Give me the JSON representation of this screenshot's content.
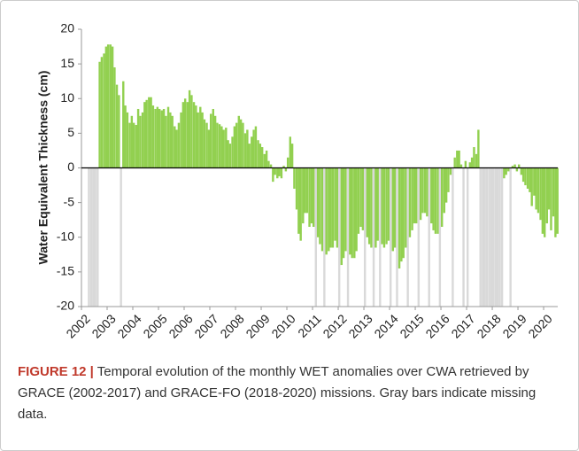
{
  "chart_data": {
    "type": "bar",
    "y_label": "Water Equivalent Thickness (cm)",
    "color": "#92d050",
    "missing_color": "#d9d9d9",
    "xlim": [
      2002,
      2020.55
    ],
    "xticks": [
      2002,
      2003,
      2004,
      2005,
      2006,
      2007,
      2008,
      2009,
      2010,
      2011,
      2012,
      2013,
      2014,
      2015,
      2016,
      2017,
      2018,
      2019,
      2020
    ],
    "ylim": [
      -20,
      20
    ],
    "yticks": [
      20,
      15,
      10,
      5,
      0,
      -5,
      -10,
      -15,
      -20
    ],
    "x": [
      2002.29,
      2002.38,
      2002.46,
      2002.54,
      2002.63,
      2002.71,
      2002.79,
      2002.88,
      2002.96,
      2003.04,
      2003.13,
      2003.21,
      2003.29,
      2003.38,
      2003.46,
      2003.54,
      2003.63,
      2003.71,
      2003.79,
      2003.88,
      2003.96,
      2004.04,
      2004.13,
      2004.21,
      2004.29,
      2004.38,
      2004.46,
      2004.54,
      2004.63,
      2004.71,
      2004.79,
      2004.88,
      2004.96,
      2005.04,
      2005.13,
      2005.21,
      2005.29,
      2005.38,
      2005.46,
      2005.54,
      2005.63,
      2005.71,
      2005.79,
      2005.88,
      2005.96,
      2006.04,
      2006.13,
      2006.21,
      2006.29,
      2006.38,
      2006.46,
      2006.54,
      2006.63,
      2006.71,
      2006.79,
      2006.88,
      2006.96,
      2007.04,
      2007.13,
      2007.21,
      2007.29,
      2007.38,
      2007.46,
      2007.54,
      2007.63,
      2007.71,
      2007.79,
      2007.88,
      2007.96,
      2008.04,
      2008.13,
      2008.21,
      2008.29,
      2008.38,
      2008.46,
      2008.54,
      2008.63,
      2008.71,
      2008.79,
      2008.88,
      2008.96,
      2009.04,
      2009.13,
      2009.21,
      2009.29,
      2009.38,
      2009.46,
      2009.54,
      2009.63,
      2009.71,
      2009.79,
      2009.88,
      2009.96,
      2010.04,
      2010.13,
      2010.21,
      2010.29,
      2010.38,
      2010.46,
      2010.54,
      2010.63,
      2010.71,
      2010.79,
      2010.88,
      2010.96,
      2011.04,
      2011.13,
      2011.21,
      2011.29,
      2011.38,
      2011.46,
      2011.54,
      2011.63,
      2011.71,
      2011.79,
      2011.88,
      2011.96,
      2012.04,
      2012.13,
      2012.21,
      2012.29,
      2012.38,
      2012.46,
      2012.54,
      2012.63,
      2012.71,
      2012.79,
      2012.88,
      2012.96,
      2013.04,
      2013.13,
      2013.21,
      2013.29,
      2013.38,
      2013.46,
      2013.54,
      2013.63,
      2013.71,
      2013.79,
      2013.88,
      2013.96,
      2014.04,
      2014.13,
      2014.21,
      2014.29,
      2014.38,
      2014.46,
      2014.54,
      2014.63,
      2014.71,
      2014.79,
      2014.88,
      2014.96,
      2015.04,
      2015.13,
      2015.21,
      2015.29,
      2015.38,
      2015.46,
      2015.54,
      2015.63,
      2015.71,
      2015.79,
      2015.88,
      2015.96,
      2016.04,
      2016.13,
      2016.21,
      2016.29,
      2016.38,
      2016.46,
      2016.54,
      2016.63,
      2016.71,
      2016.79,
      2016.88,
      2016.96,
      2017.04,
      2017.13,
      2017.21,
      2017.29,
      2017.38,
      2017.46,
      2017.54,
      2017.63,
      2017.71,
      2017.79,
      2017.88,
      2017.96,
      2018.04,
      2018.13,
      2018.21,
      2018.29,
      2018.38,
      2018.46,
      2018.54,
      2018.63,
      2018.71,
      2018.79,
      2018.88,
      2018.96,
      2019.04,
      2019.13,
      2019.21,
      2019.29,
      2019.38,
      2019.46,
      2019.54,
      2019.63,
      2019.71,
      2019.79,
      2019.88,
      2019.96,
      2020.04,
      2020.13,
      2020.21,
      2020.29,
      2020.38,
      2020.46,
      2020.54
    ],
    "values": [
      null,
      null,
      null,
      null,
      null,
      15.3,
      16,
      16.5,
      17.5,
      17.8,
      17.8,
      17.5,
      14.5,
      12,
      10.5,
      null,
      12.5,
      9,
      8,
      6.5,
      7.5,
      6.5,
      6.2,
      8.5,
      7.5,
      8,
      9.5,
      9.8,
      10.2,
      10.2,
      9,
      8.5,
      8.8,
      8.5,
      8.3,
      8.5,
      7.5,
      8.8,
      8,
      7.5,
      6,
      5.5,
      6.5,
      8,
      9.5,
      10,
      9.5,
      11.2,
      10.5,
      9.5,
      9,
      8,
      8.8,
      8,
      7,
      6.5,
      5.5,
      7.8,
      8.5,
      7.5,
      6.5,
      6.3,
      6,
      5.5,
      5.8,
      4,
      3.5,
      4.5,
      6,
      6.5,
      7.5,
      7,
      6.5,
      5,
      5.5,
      3.5,
      4.5,
      5.5,
      6,
      4,
      3.5,
      3,
      2,
      2.5,
      1,
      0.5,
      -2,
      -1,
      -1.5,
      -1.2,
      -1.5,
      0.3,
      -0.5,
      1.5,
      4.5,
      3.5,
      -3,
      -6,
      -9.5,
      -10.5,
      -8,
      -6.5,
      -6.5,
      -8.5,
      -8,
      -8.5,
      null,
      -10,
      -11,
      -12,
      null,
      -12.5,
      -12,
      -11.5,
      -11.5,
      -10.5,
      -11.5,
      null,
      -14,
      -13,
      -12,
      null,
      -12.5,
      -13,
      -13,
      -12,
      -9.5,
      -8.5,
      -9,
      null,
      -10,
      -11,
      -11.5,
      null,
      -11.5,
      -10.5,
      null,
      -11,
      -11.5,
      -11,
      -10.5,
      null,
      -12,
      -11.5,
      null,
      -14.5,
      -13.5,
      -13,
      -11.5,
      null,
      -10,
      -9,
      -8,
      -8,
      null,
      -7.5,
      -6.5,
      -6.5,
      -7,
      null,
      -8,
      -9,
      -9.5,
      -9.5,
      null,
      -8.5,
      -6.5,
      -5,
      -3.5,
      -1,
      null,
      1.5,
      2.5,
      2.5,
      0.5,
      null,
      1,
      null,
      0.8,
      1.5,
      3,
      2,
      5.5,
      null,
      null,
      null,
      null,
      null,
      null,
      null,
      null,
      null,
      null,
      null,
      -1.5,
      -1,
      -0.5,
      null,
      0.3,
      0.5,
      -0.5,
      0.5,
      -1,
      -2,
      -2.5,
      -3,
      -3.5,
      -5.5,
      -4,
      -6,
      -6.5,
      -7.5,
      -9.5,
      -10,
      -8,
      -6,
      -9,
      -7,
      -10,
      -9.5
    ]
  },
  "caption": {
    "label": "FIGURE 12 |",
    "text": "Temporal evolution of the monthly WET anomalies over CWA retrieved by GRACE (2002-2017) and GRACE-FO (2018-2020) missions. Gray bars indicate missing data."
  }
}
